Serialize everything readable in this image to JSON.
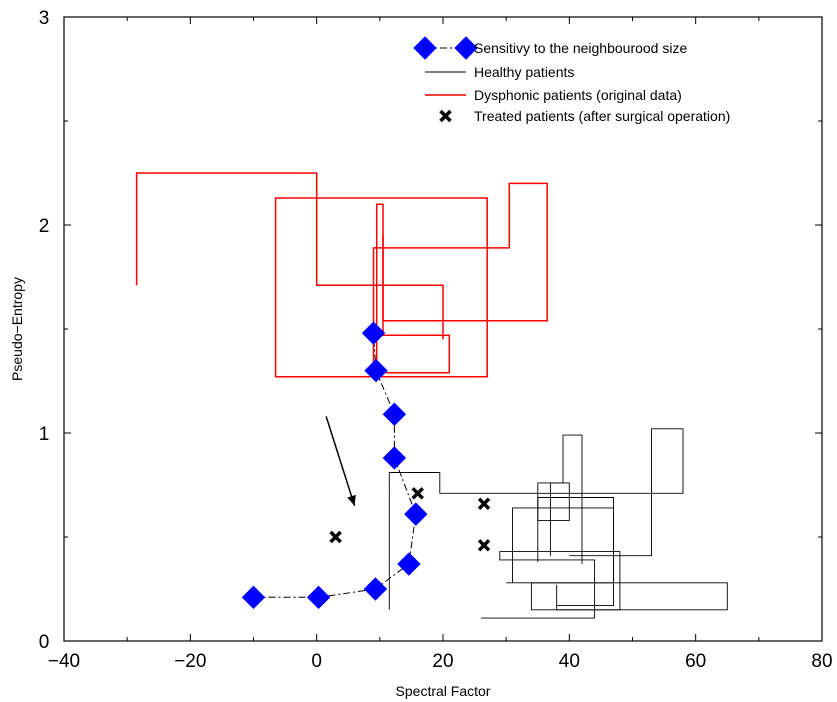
{
  "chart_data": {
    "type": "line",
    "title": "",
    "xlabel": "Spectral Factor",
    "ylabel": "Pseudo−Entropy",
    "xlim": [
      -40,
      80
    ],
    "ylim": [
      0,
      3
    ],
    "xticks": [
      -40,
      -20,
      0,
      20,
      40,
      60,
      80
    ],
    "yticks": [
      0,
      1,
      2,
      3
    ],
    "xtick_labels": [
      "−40",
      "−20",
      "0",
      "20",
      "40",
      "60",
      "80"
    ],
    "ytick_labels": [
      "0",
      "1",
      "2",
      "3"
    ],
    "grid": false,
    "legend_position": "top-right",
    "series": [
      {
        "name": "Sensitivy to the neighbourood size",
        "style": "dash-dot with diamond markers",
        "color": "#0000ff",
        "x": [
          -10,
          0.3,
          9.3,
          14.6,
          15.7,
          12.3,
          12.3,
          9.4,
          9.0
        ],
        "y": [
          0.21,
          0.21,
          0.25,
          0.37,
          0.61,
          0.88,
          1.09,
          1.3,
          1.48
        ]
      },
      {
        "name": "Healthy patients",
        "style": "solid step",
        "color": "#000000",
        "segments": [
          {
            "x": [
              11.5,
              11.5,
              19.5,
              19.5,
              58,
              58,
              53,
              53,
              40
            ],
            "y": [
              0.15,
              0.81,
              0.81,
              0.71,
              0.71,
              1.02,
              1.02,
              0.41,
              0.41
            ]
          },
          {
            "x": [
              31,
              31,
              47,
              47,
              38
            ],
            "y": [
              0.28,
              0.64,
              0.64,
              0.17,
              0.17
            ]
          },
          {
            "x": [
              35,
              35,
              39,
              39,
              42,
              42
            ],
            "y": [
              0.38,
              0.76,
              0.76,
              0.99,
              0.99,
              0.37
            ]
          },
          {
            "x": [
              26,
              44,
              44,
              29,
              29,
              48,
              48,
              38,
              38
            ],
            "y": [
              0.11,
              0.11,
              0.39,
              0.39,
              0.43,
              0.43,
              0.15,
              0.15,
              0.27
            ]
          },
          {
            "x": [
              34,
              34,
              65,
              65,
              34,
              34
            ],
            "y": [
              0.15,
              0.28,
              0.28,
              0.15,
              0.15,
              0.2
            ]
          },
          {
            "x": [
              37,
              37,
              40,
              40,
              35,
              35,
              47,
              47,
              30
            ],
            "y": [
              0.41,
              0.76,
              0.76,
              0.58,
              0.58,
              0.69,
              0.69,
              0.28,
              0.28
            ]
          }
        ]
      },
      {
        "name": "Dysphonic patients (original data)",
        "style": "solid step",
        "color": "#ff0000",
        "segments": [
          {
            "x": [
              -28.5,
              -28.5,
              0,
              0,
              20,
              20
            ],
            "y": [
              1.71,
              2.25,
              2.25,
              1.71,
              1.71,
              1.45
            ]
          },
          {
            "x": [
              -6.5,
              -6.5,
              27,
              27,
              -6.5,
              -6.5
            ],
            "y": [
              1.27,
              2.13,
              2.13,
              1.27,
              1.27,
              1.5
            ]
          },
          {
            "x": [
              9.5,
              9.5,
              10.5,
              10.5,
              21,
              21,
              9.5
            ],
            "y": [
              1.3,
              2.1,
              2.1,
              1.47,
              1.47,
              1.29,
              1.29
            ]
          },
          {
            "x": [
              9,
              9,
              30.5,
              30.5,
              36.5,
              36.5,
              10.5,
              10.5
            ],
            "y": [
              1.3,
              1.89,
              1.89,
              2.2,
              2.2,
              1.54,
              1.54,
              1.95
            ]
          }
        ]
      },
      {
        "name": "Treated patients (after surgical operation)",
        "style": "markers only (x)",
        "color": "#000000",
        "x": [
          3,
          16,
          26.5,
          26.5
        ],
        "y": [
          0.5,
          0.71,
          0.66,
          0.46
        ]
      }
    ],
    "annotations": [
      {
        "type": "arrow",
        "from": [
          1.5,
          1.08
        ],
        "to": [
          6,
          0.65
        ]
      }
    ]
  }
}
